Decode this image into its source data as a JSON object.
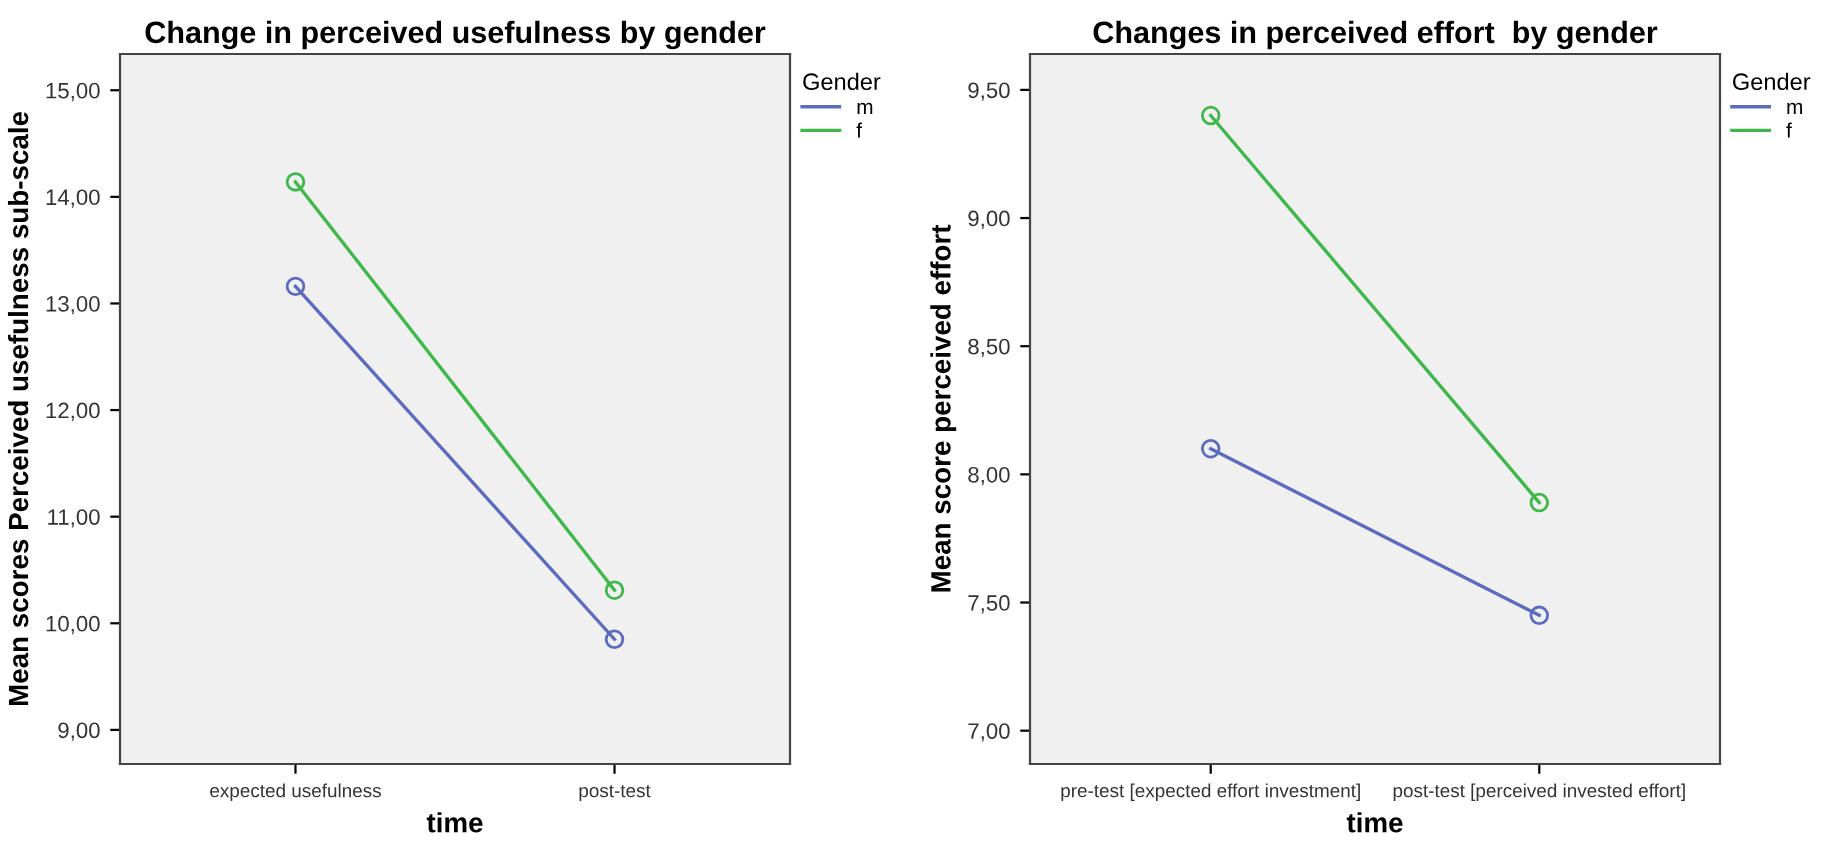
{
  "chart_data": [
    {
      "type": "line",
      "title": "Change in perceived usefulness by gender",
      "xlabel": "time",
      "ylabel": "Mean scores Perceived usefulness sub-scale",
      "legend_title": "Gender",
      "categories": [
        "expected usefulness",
        "post-test"
      ],
      "series": [
        {
          "name": "m",
          "color": "#5b6bbf",
          "values": [
            13.16,
            9.85
          ]
        },
        {
          "name": "f",
          "color": "#3fb84a",
          "values": [
            14.14,
            10.31
          ]
        }
      ],
      "ylim": [
        8.68,
        15.34
      ],
      "yticks": [
        {
          "value": 9,
          "label": "9,00"
        },
        {
          "value": 10,
          "label": "10,00"
        },
        {
          "value": 11,
          "label": "11,00"
        },
        {
          "value": 12,
          "label": "12,00"
        },
        {
          "value": 13,
          "label": "13,00"
        },
        {
          "value": 14,
          "label": "14,00"
        },
        {
          "value": 15,
          "label": "15,00"
        }
      ],
      "marker": "circle",
      "grid": false,
      "legend": "top right"
    },
    {
      "type": "line",
      "title": "Changes in perceived effort  by gender",
      "xlabel": "time",
      "ylabel": "Mean score perceived effort",
      "legend_title": "Gender",
      "categories": [
        "pre-test [expected effort investment]",
        "post-test [perceived invested effort]"
      ],
      "series": [
        {
          "name": "m",
          "color": "#5b6bbf",
          "values": [
            8.1,
            7.45
          ]
        },
        {
          "name": "f",
          "color": "#3fb84a",
          "values": [
            9.4,
            7.89
          ]
        }
      ],
      "ylim": [
        6.87,
        9.64
      ],
      "yticks": [
        {
          "value": 7,
          "label": "7,00"
        },
        {
          "value": 7.5,
          "label": "7,50"
        },
        {
          "value": 8,
          "label": "8,00"
        },
        {
          "value": 8.5,
          "label": "8,50"
        },
        {
          "value": 9,
          "label": "9,00"
        },
        {
          "value": 9.5,
          "label": "9,50"
        }
      ],
      "marker": "circle",
      "grid": false,
      "legend": "top right"
    }
  ]
}
